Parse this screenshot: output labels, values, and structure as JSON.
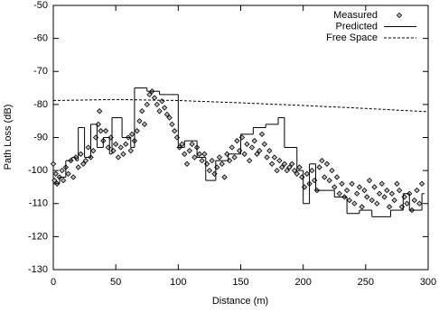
{
  "chart_data": {
    "type": "line",
    "x_label": "Distance (m)",
    "y_label": "Path Loss (dB)",
    "xlim": [
      0,
      300
    ],
    "ylim": [
      -130,
      -50
    ],
    "xticks": [
      0,
      50,
      100,
      150,
      200,
      250,
      300
    ],
    "yticks": [
      -130,
      -120,
      -110,
      -100,
      -90,
      -80,
      -70,
      -60,
      -50
    ],
    "legend": "top-right",
    "series": [
      {
        "name": "Measured",
        "color": "#000000",
        "marker": "diamond",
        "line": "none",
        "x": [
          0,
          1,
          2,
          3,
          5,
          7,
          8,
          10,
          12,
          14,
          16,
          18,
          20,
          22,
          24,
          26,
          28,
          30,
          32,
          34,
          36,
          37,
          38,
          40,
          42,
          44,
          46,
          48,
          50,
          52,
          54,
          56,
          58,
          60,
          62,
          63,
          65,
          67,
          69,
          71,
          73,
          75,
          77,
          79,
          81,
          83,
          85,
          87,
          89,
          91,
          93,
          95,
          97,
          99,
          101,
          103,
          105,
          107,
          109,
          111,
          113,
          115,
          117,
          119,
          121,
          123,
          125,
          127,
          129,
          131,
          133,
          135,
          137,
          139,
          141,
          143,
          145,
          147,
          149,
          151,
          153,
          155,
          157,
          159,
          161,
          163,
          165,
          167,
          169,
          171,
          173,
          175,
          177,
          179,
          181,
          183,
          185,
          187,
          189,
          191,
          193,
          195,
          197,
          199,
          201,
          203,
          205,
          207,
          209,
          211,
          213,
          215,
          217,
          219,
          221,
          223,
          225,
          227,
          229,
          231,
          233,
          235,
          237,
          239,
          241,
          243,
          245,
          247,
          249,
          251,
          253,
          255,
          257,
          259,
          261,
          263,
          265,
          267,
          269,
          271,
          273,
          275,
          277,
          279,
          281,
          283,
          285,
          287,
          289,
          291,
          293,
          295
        ],
        "values": [
          -98,
          -103,
          -101,
          -104,
          -102,
          -100,
          -103,
          -99,
          -101,
          -97,
          -102,
          -96,
          -99,
          -95,
          -98,
          -97,
          -93,
          -96,
          -94,
          -90,
          -86,
          -82,
          -88,
          -91,
          -88,
          -93,
          -90,
          -94,
          -92,
          -96,
          -93,
          -95,
          -92,
          -90,
          -94,
          -89,
          -91,
          -88,
          -85,
          -82,
          -86,
          -80,
          -77,
          -76,
          -78,
          -80,
          -82,
          -79,
          -81,
          -83,
          -84,
          -86,
          -88,
          -90,
          -93,
          -92,
          -95,
          -98,
          -94,
          -92,
          -96,
          -93,
          -95,
          -97,
          -95,
          -98,
          -100,
          -97,
          -101,
          -99,
          -96,
          -98,
          -102,
          -95,
          -97,
          -93,
          -96,
          -91,
          -94,
          -90,
          -95,
          -92,
          -97,
          -93,
          -91,
          -95,
          -94,
          -89,
          -92,
          -96,
          -94,
          -98,
          -96,
          -100,
          -97,
          -99,
          -98,
          -100,
          -99,
          -98,
          -100,
          -101,
          -99,
          -102,
          -105,
          -101,
          -104,
          -100,
          -103,
          -106,
          -99,
          -97,
          -102,
          -98,
          -103,
          -100,
          -105,
          -102,
          -107,
          -104,
          -108,
          -106,
          -109,
          -104,
          -110,
          -107,
          -105,
          -111,
          -106,
          -108,
          -103,
          -109,
          -105,
          -110,
          -107,
          -104,
          -108,
          -106,
          -111,
          -107,
          -109,
          -104,
          -106,
          -111,
          -108,
          -110,
          -107,
          -112,
          -109,
          -106,
          -110,
          -104
        ]
      },
      {
        "name": "Predicted",
        "color": "#000000",
        "line": "steps",
        "x": [
          0,
          5,
          10,
          15,
          18,
          20,
          25,
          30,
          35,
          40,
          45,
          47,
          55,
          62,
          65,
          75,
          85,
          100,
          105,
          115,
          122,
          130,
          140,
          150,
          160,
          170,
          180,
          185,
          195,
          200,
          205,
          210,
          225,
          235,
          245,
          255,
          270,
          280,
          285,
          295,
          297
        ],
        "values": [
          -104,
          -102,
          -97,
          -96,
          -97,
          -87,
          -96,
          -86,
          -93,
          -90,
          -95,
          -84,
          -90,
          -93,
          -75,
          -76,
          -77,
          -93,
          -91,
          -96,
          -103,
          -97,
          -95,
          -89,
          -87,
          -86,
          -84,
          -93,
          -100,
          -110,
          -98,
          -106,
          -108,
          -113,
          -112,
          -114,
          -112,
          -107,
          -112,
          -107,
          -107
        ]
      },
      {
        "name": "Free Space",
        "color": "#000000",
        "line": "dashed",
        "x": [
          0,
          50,
          100,
          150,
          200,
          250,
          300
        ],
        "values": [
          -78.8,
          -78.5,
          -78.8,
          -79.5,
          -80.3,
          -81.2,
          -82.2
        ]
      }
    ]
  }
}
